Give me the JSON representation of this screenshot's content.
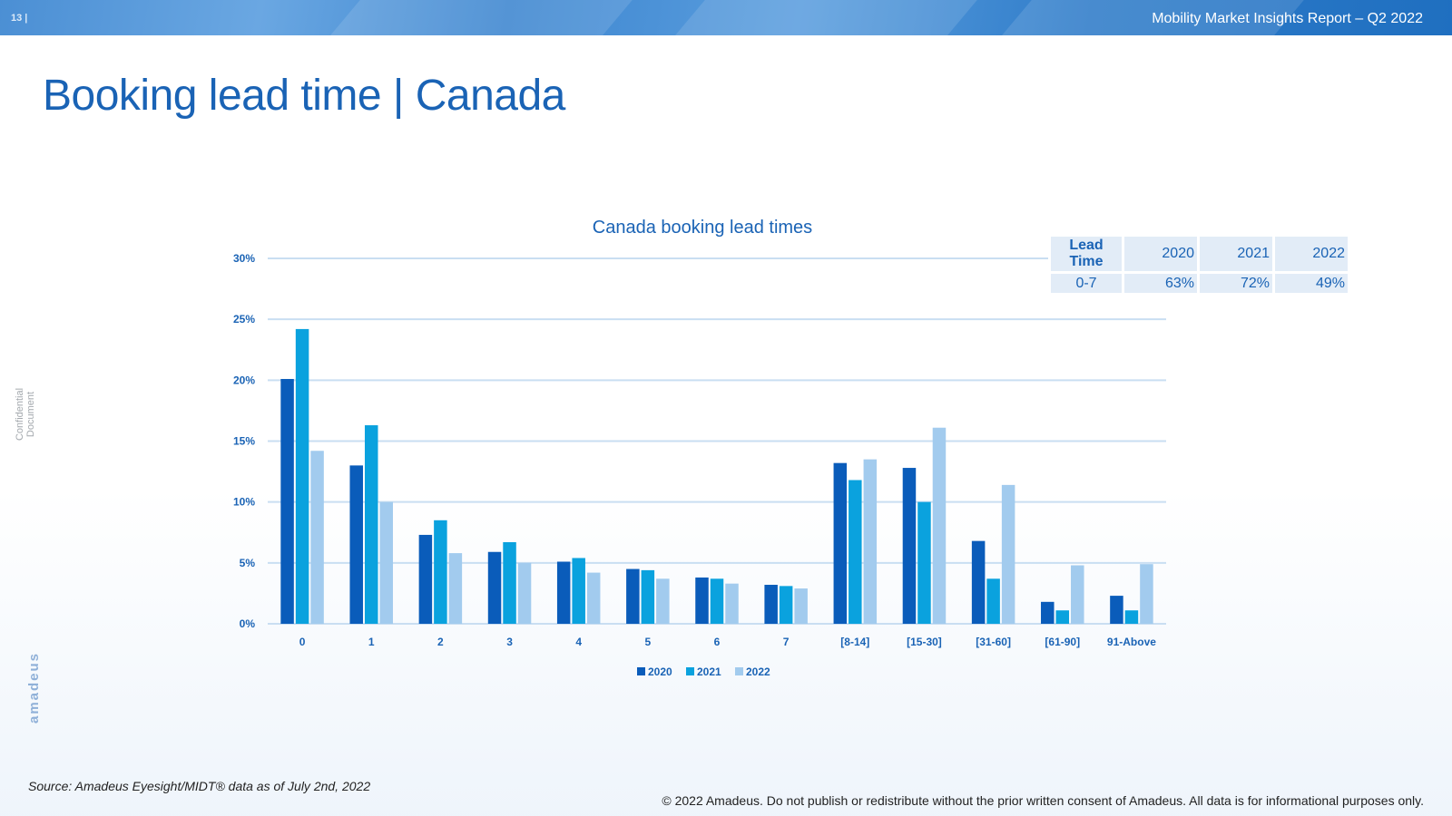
{
  "header": {
    "page_number": "13 |",
    "report_title": "Mobility Market Insights Report – Q2 2022"
  },
  "slide": {
    "title": "Booking lead time | Canada",
    "side_label": "Confidential Document",
    "logo": "amadeus"
  },
  "colors": {
    "2020": "#0a5cba",
    "2021": "#0aa2de",
    "2022": "#a2cbee",
    "title": "#1a63b5",
    "grid": "#c9def2"
  },
  "chart_data": {
    "type": "bar",
    "title": "Canada booking lead times",
    "categories": [
      "0",
      "1",
      "2",
      "3",
      "4",
      "5",
      "6",
      "7",
      "[8-14]",
      "[15-30]",
      "[31-60]",
      "[61-90]",
      "91-Above"
    ],
    "series": [
      {
        "name": "2020",
        "values": [
          20.1,
          13.0,
          7.3,
          5.9,
          5.1,
          4.5,
          3.8,
          3.2,
          13.2,
          12.8,
          6.8,
          1.8,
          2.3
        ]
      },
      {
        "name": "2021",
        "values": [
          24.2,
          16.3,
          8.5,
          6.7,
          5.4,
          4.4,
          3.7,
          3.1,
          11.8,
          10.0,
          3.7,
          1.1,
          1.1
        ]
      },
      {
        "name": "2022",
        "values": [
          14.2,
          10.0,
          5.8,
          5.0,
          4.2,
          3.7,
          3.3,
          2.9,
          13.5,
          16.1,
          11.4,
          4.8,
          4.9
        ]
      }
    ],
    "y_ticks": [
      "0%",
      "5%",
      "10%",
      "15%",
      "20%",
      "25%",
      "30%"
    ],
    "ylim": [
      0,
      30
    ],
    "xlabel": "",
    "ylabel": "",
    "grid": true,
    "legend_position": "bottom"
  },
  "table": {
    "headers": [
      "Lead Time",
      "2020",
      "2021",
      "2022"
    ],
    "row": [
      "0-7",
      "63%",
      "72%",
      "49%"
    ]
  },
  "footer": {
    "source": "Source: Amadeus Eyesight/MIDT® data as of July 2nd, 2022",
    "copyright": "© 2022 Amadeus. Do not publish or redistribute without the prior written consent of Amadeus. All data is for informational purposes only."
  }
}
